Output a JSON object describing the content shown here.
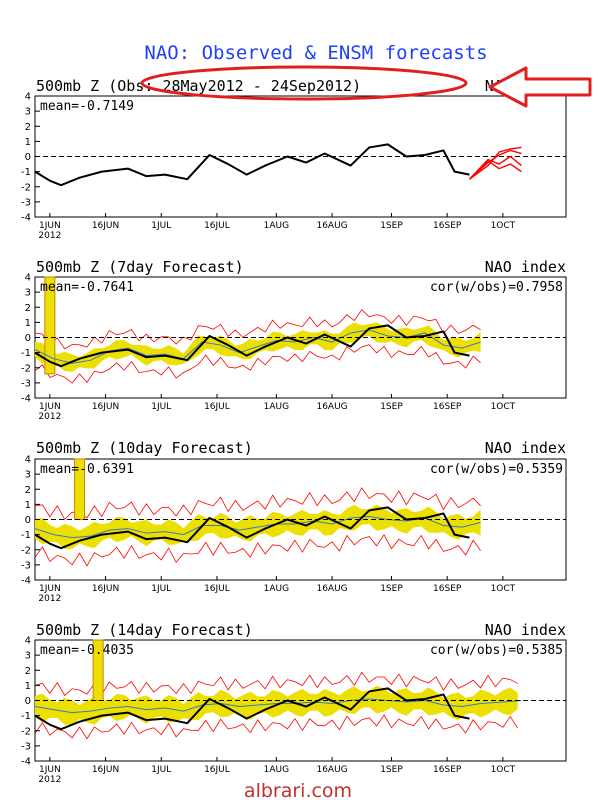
{
  "page": {
    "title": "NAO: Observed & ENSM forecasts",
    "watermark": "albrari.com",
    "colors": {
      "title": "#1f3fff",
      "observed": "#000000",
      "ensemble_mean": "#3c78c8",
      "spread": "#ece000",
      "members": "#ff0000",
      "annotation": "#e02020",
      "gridline": "#000000"
    }
  },
  "chart_data": [
    {
      "type": "line",
      "panel": "observed",
      "title": "500mb Z (Obs: 28May2012 - 24Sep2012)",
      "right_title": "NAO index",
      "mean_label": "mean=-0.7149",
      "cor_label": "",
      "ylim": [
        -4,
        4
      ],
      "yticks": [
        4,
        3,
        2,
        1,
        0,
        -1,
        -2,
        -3,
        -4
      ],
      "xticks": [
        "1JUN",
        "16JUN",
        "1JUL",
        "16JUL",
        "1AUG",
        "16AUG",
        "1SEP",
        "16SEP",
        "1OCT"
      ],
      "xtick_sub": "2012",
      "grid": false,
      "zero_line": "dashed",
      "series": [
        {
          "role": "observed",
          "x": [
            0,
            4,
            7,
            12,
            18,
            25,
            30,
            35,
            41,
            47,
            52,
            57,
            62,
            68,
            73,
            78,
            85,
            90,
            95,
            100,
            105,
            110,
            113,
            117
          ],
          "values": [
            -1.0,
            -1.6,
            -1.9,
            -1.4,
            -1.0,
            -0.8,
            -1.3,
            -1.2,
            -1.5,
            0.1,
            -0.5,
            -1.2,
            -0.6,
            0.0,
            -0.4,
            0.2,
            -0.6,
            0.6,
            0.8,
            0.0,
            0.1,
            0.4,
            -1.0,
            -1.2
          ]
        }
      ],
      "forecast_members": [
        {
          "x": [
            117,
            122,
            125,
            128,
            131
          ],
          "values": [
            -1.5,
            -0.4,
            0.1,
            0.4,
            0.2
          ]
        },
        {
          "x": [
            117,
            122,
            125,
            128,
            131
          ],
          "values": [
            -1.5,
            -0.2,
            -0.5,
            0.0,
            -0.6
          ]
        },
        {
          "x": [
            117,
            122,
            125,
            128,
            131
          ],
          "values": [
            -1.5,
            -0.6,
            0.3,
            0.5,
            0.6
          ]
        },
        {
          "x": [
            117,
            122,
            125,
            128,
            131
          ],
          "values": [
            -1.5,
            -0.3,
            -0.8,
            -0.5,
            -1.0
          ]
        }
      ]
    },
    {
      "type": "line",
      "panel": "7day",
      "title": "500mb Z (7day Forecast)",
      "right_title": "NAO index",
      "mean_label": "mean=-0.7641",
      "cor_label": "cor(w/obs)=0.7958",
      "ylim": [
        -4,
        4
      ],
      "yticks": [
        4,
        3,
        2,
        1,
        0,
        -1,
        -2,
        -3,
        -4
      ],
      "xticks": [
        "1JUN",
        "16JUN",
        "1JUL",
        "16JUL",
        "1AUG",
        "16AUG",
        "1SEP",
        "16SEP",
        "1OCT"
      ],
      "xtick_sub": "2012",
      "grid": false,
      "zero_line": "dashed",
      "series": [
        {
          "role": "observed",
          "x": [
            0,
            4,
            7,
            12,
            18,
            25,
            30,
            35,
            41,
            47,
            52,
            57,
            62,
            68,
            73,
            78,
            85,
            90,
            95,
            100,
            105,
            110,
            113,
            117
          ],
          "values": [
            -1.0,
            -1.6,
            -1.9,
            -1.4,
            -1.0,
            -0.8,
            -1.3,
            -1.2,
            -1.5,
            0.1,
            -0.5,
            -1.2,
            -0.6,
            0.0,
            -0.4,
            0.2,
            -0.6,
            0.6,
            0.8,
            0.0,
            0.1,
            0.4,
            -1.0,
            -1.2
          ]
        },
        {
          "role": "ensemble_mean",
          "x": [
            0,
            5,
            10,
            15,
            20,
            25,
            30,
            35,
            40,
            45,
            50,
            55,
            60,
            65,
            70,
            75,
            80,
            85,
            90,
            95,
            100,
            105,
            110,
            115,
            120
          ],
          "values": [
            -0.8,
            -1.4,
            -1.7,
            -1.5,
            -0.9,
            -0.7,
            -1.2,
            -1.1,
            -1.4,
            -0.3,
            -0.5,
            -1.0,
            -0.6,
            -0.2,
            -0.3,
            0.0,
            -0.3,
            0.3,
            0.5,
            0.1,
            0.0,
            0.3,
            -0.5,
            -0.7,
            -0.3
          ]
        }
      ],
      "spread_half_width": 0.5,
      "member_offset": 1.1,
      "spike": {
        "x": 4,
        "top": 4,
        "bottom": -2.4
      }
    },
    {
      "type": "line",
      "panel": "10day",
      "title": "500mb Z (10day Forecast)",
      "right_title": "NAO index",
      "mean_label": "mean=-0.6391",
      "cor_label": "cor(w/obs)=0.5359",
      "ylim": [
        -4,
        4
      ],
      "yticks": [
        4,
        3,
        2,
        1,
        0,
        -1,
        -2,
        -3,
        -4
      ],
      "xticks": [
        "1JUN",
        "16JUN",
        "1JUL",
        "16JUL",
        "1AUG",
        "16AUG",
        "1SEP",
        "16SEP",
        "1OCT"
      ],
      "xtick_sub": "2012",
      "grid": false,
      "zero_line": "dashed",
      "series": [
        {
          "role": "observed",
          "x": [
            0,
            4,
            7,
            12,
            18,
            25,
            30,
            35,
            41,
            47,
            52,
            57,
            62,
            68,
            73,
            78,
            85,
            90,
            95,
            100,
            105,
            110,
            113,
            117
          ],
          "values": [
            -1.0,
            -1.6,
            -1.9,
            -1.4,
            -1.0,
            -0.8,
            -1.3,
            -1.2,
            -1.5,
            0.1,
            -0.5,
            -1.2,
            -0.6,
            0.0,
            -0.4,
            0.2,
            -0.6,
            0.6,
            0.8,
            0.0,
            0.1,
            0.4,
            -1.0,
            -1.2
          ]
        },
        {
          "role": "ensemble_mean",
          "x": [
            0,
            5,
            10,
            15,
            20,
            25,
            30,
            35,
            40,
            45,
            50,
            55,
            60,
            65,
            70,
            75,
            80,
            85,
            90,
            95,
            100,
            105,
            110,
            115,
            120
          ],
          "values": [
            -0.6,
            -1.0,
            -1.2,
            -1.1,
            -0.7,
            -0.6,
            -0.9,
            -0.8,
            -1.0,
            -0.4,
            -0.4,
            -0.7,
            -0.5,
            -0.3,
            -0.3,
            -0.1,
            -0.3,
            0.1,
            0.2,
            0.0,
            -0.1,
            0.1,
            -0.4,
            -0.5,
            -0.2
          ]
        }
      ],
      "spread_half_width": 0.65,
      "member_offset": 1.5,
      "spike": {
        "x": 12,
        "top": 4,
        "bottom": 0.0
      }
    },
    {
      "type": "line",
      "panel": "14day",
      "title": "500mb Z (14day Forecast)",
      "right_title": "NAO index",
      "mean_label": "mean=-0.4035",
      "cor_label": "cor(w/obs)=0.5385",
      "ylim": [
        -4,
        4
      ],
      "yticks": [
        4,
        3,
        2,
        1,
        0,
        -1,
        -2,
        -3,
        -4
      ],
      "xticks": [
        "1JUN",
        "16JUN",
        "1JUL",
        "16JUL",
        "1AUG",
        "16AUG",
        "1SEP",
        "16SEP",
        "1OCT"
      ],
      "xtick_sub": "2012",
      "grid": false,
      "zero_line": "dashed",
      "series": [
        {
          "role": "observed",
          "x": [
            0,
            4,
            7,
            12,
            18,
            25,
            30,
            35,
            41,
            47,
            52,
            57,
            62,
            68,
            73,
            78,
            85,
            90,
            95,
            100,
            105,
            110,
            113,
            117
          ],
          "values": [
            -1.0,
            -1.6,
            -1.9,
            -1.4,
            -1.0,
            -0.8,
            -1.3,
            -1.2,
            -1.5,
            0.1,
            -0.5,
            -1.2,
            -0.6,
            0.0,
            -0.4,
            0.2,
            -0.6,
            0.6,
            0.8,
            0.0,
            0.1,
            0.4,
            -1.0,
            -1.2
          ]
        },
        {
          "role": "ensemble_mean",
          "x": [
            0,
            5,
            10,
            15,
            20,
            25,
            30,
            35,
            40,
            45,
            50,
            55,
            60,
            65,
            70,
            75,
            80,
            85,
            90,
            95,
            100,
            105,
            110,
            115,
            120,
            126,
            131
          ],
          "values": [
            -0.4,
            -0.6,
            -0.8,
            -0.7,
            -0.5,
            -0.4,
            -0.6,
            -0.5,
            -0.7,
            -0.3,
            -0.2,
            -0.4,
            -0.3,
            -0.2,
            -0.2,
            -0.1,
            -0.2,
            0.0,
            0.1,
            0.0,
            -0.1,
            0.0,
            -0.3,
            -0.4,
            -0.2,
            -0.1,
            0.0
          ]
        }
      ],
      "spread_half_width": 0.7,
      "member_offset": 1.4,
      "spike": {
        "x": 17,
        "top": 4,
        "bottom": 0.0
      }
    }
  ]
}
